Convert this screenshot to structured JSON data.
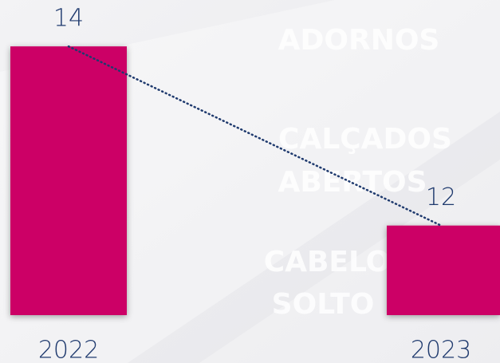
{
  "chart_data": {
    "type": "bar",
    "categories": [
      "2022",
      "2023"
    ],
    "values": [
      14,
      12
    ],
    "color": "#cc0066",
    "ylim": [
      11,
      14.5
    ],
    "trendline": true,
    "background_labels": [
      "ADORNOS",
      "CALÇADOS",
      "ABERTOS",
      "CABELO",
      "SOLTO"
    ]
  }
}
